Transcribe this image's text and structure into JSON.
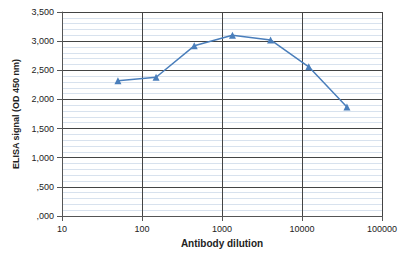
{
  "chart_data": {
    "type": "line",
    "log": "x",
    "grid": true,
    "marker": "triangle",
    "color": "#4a7ebb",
    "x_label": "Antibody dilution",
    "y_label": "ELISA signal (OD 450 nm)",
    "x": [
      50,
      150,
      450,
      1350,
      4050,
      12150,
      36450
    ],
    "values": [
      2320,
      2380,
      2920,
      3100,
      3020,
      2560,
      1870
    ],
    "xlim": [
      10,
      100000
    ],
    "xticks": [
      10,
      100,
      1000,
      10000,
      100000
    ],
    "ylim": [
      0,
      3500
    ],
    "yticks": [
      {
        "value": 0,
        "label": ",000"
      },
      {
        "value": 500,
        "label": ",500"
      },
      {
        "value": 1000,
        "label": "1,000"
      },
      {
        "value": 1500,
        "label": "1,500"
      },
      {
        "value": 2000,
        "label": "2,000"
      },
      {
        "value": 2500,
        "label": "2,500"
      },
      {
        "value": 3000,
        "label": "3,000"
      },
      {
        "value": 3500,
        "label": "3,500"
      }
    ]
  }
}
